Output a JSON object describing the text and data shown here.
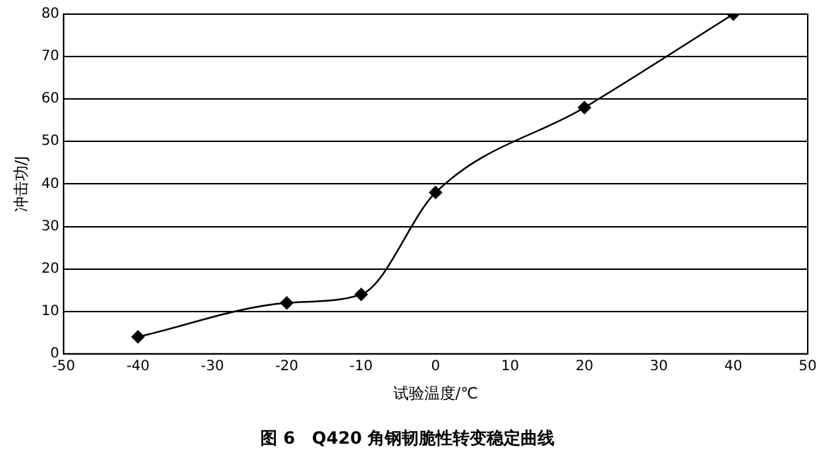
{
  "chart_data": {
    "type": "line",
    "title": "图 6　Q420 角钢韧脆性转变稳定曲线",
    "xlabel": "试验温度/℃",
    "ylabel": "冲击功/J",
    "x": [
      -40,
      -20,
      -10,
      0,
      20,
      40
    ],
    "series": [
      {
        "color": "#000000",
        "values": [
          4,
          12,
          14,
          38,
          58,
          80
        ]
      }
    ],
    "xlim": [
      -50,
      50
    ],
    "xticks": [
      -50,
      -40,
      -30,
      -20,
      -10,
      0,
      10,
      20,
      30,
      40,
      50
    ],
    "ylim": [
      0,
      80
    ],
    "yticks": [
      0,
      10,
      20,
      30,
      40,
      50,
      60,
      70,
      80
    ],
    "grid": "y",
    "legend": false,
    "marker": "diamond",
    "line_style": "solid"
  }
}
